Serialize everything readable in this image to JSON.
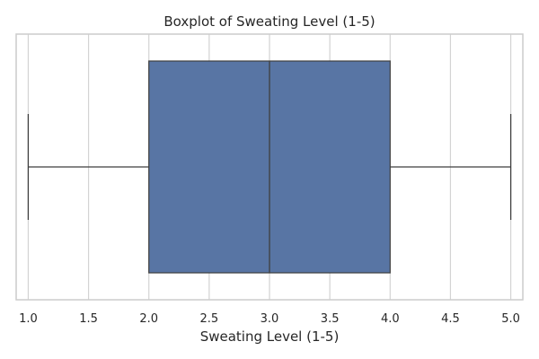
{
  "chart_data": {
    "type": "boxplot",
    "orientation": "horizontal",
    "title": "Boxplot of Sweating Level (1-5)",
    "xlabel": "Sweating Level (1-5)",
    "ylabel": "",
    "xlim": [
      0.9,
      5.1
    ],
    "xticks": [
      "1.0",
      "1.5",
      "2.0",
      "2.5",
      "3.0",
      "3.5",
      "4.0",
      "4.5",
      "5.0"
    ],
    "grid": true,
    "box": {
      "whisker_low": 1.0,
      "q1": 2.0,
      "median": 3.0,
      "q3": 4.0,
      "whisker_high": 5.0
    },
    "colors": {
      "box_fill": "#5875a4",
      "line": "#3f3f3f",
      "grid": "#d3d3d3",
      "frame": "#cccccc"
    }
  }
}
